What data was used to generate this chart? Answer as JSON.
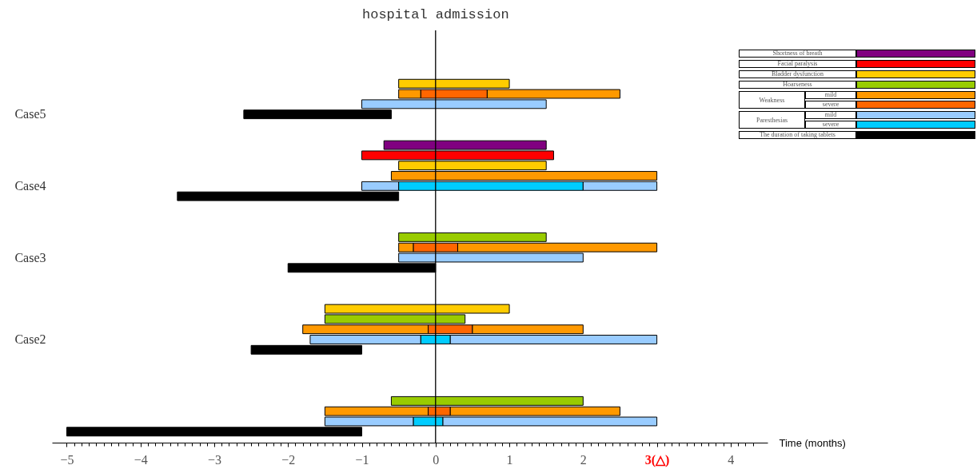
{
  "chart_data": {
    "type": "bar",
    "orientation": "horizontal",
    "xlabel": "Time (months)",
    "legend": "top right",
    "grid": false,
    "categories": [
      null,
      null,
      null,
      "Case5",
      null,
      null,
      null,
      null,
      null,
      null,
      "Case4",
      null,
      null,
      null,
      null,
      null,
      null,
      "Case3",
      null,
      null,
      null,
      null,
      null,
      null,
      null,
      "Case2",
      null,
      null,
      null,
      null,
      null,
      null,
      null,
      null,
      null
    ],
    "series": [
      {
        "name": "Shortness of breath",
        "color": "#800080",
        "values": [
          null,
          null,
          null,
          null,
          null,
          null,
          2.2,
          null,
          null,
          null,
          null,
          null,
          null,
          null,
          null,
          null,
          null,
          null,
          null,
          null,
          null,
          null,
          null,
          null,
          null,
          null,
          null,
          null,
          null,
          null,
          null,
          null,
          null,
          null,
          null
        ],
        "base": [
          null,
          null,
          null,
          null,
          null,
          null,
          -0.7,
          null,
          null,
          null,
          null,
          null,
          null,
          null,
          null,
          null,
          null,
          null,
          null,
          null,
          null,
          null,
          null,
          null,
          null,
          null,
          null,
          null,
          null,
          null,
          null,
          null,
          null,
          null,
          null
        ]
      },
      {
        "name": "Facial paralysis",
        "color": "#ff0000",
        "values": [
          null,
          null,
          null,
          null,
          null,
          null,
          null,
          2.6,
          null,
          null,
          null,
          null,
          null,
          null,
          null,
          null,
          null,
          null,
          null,
          null,
          null,
          null,
          null,
          null,
          null,
          null,
          null,
          null,
          null,
          null,
          null,
          null,
          null,
          null,
          null
        ],
        "base": [
          null,
          null,
          null,
          null,
          null,
          null,
          null,
          -1,
          null,
          null,
          null,
          null,
          null,
          null,
          null,
          null,
          null,
          null,
          null,
          null,
          null,
          null,
          null,
          null,
          null,
          null,
          null,
          null,
          null,
          null,
          null,
          null,
          null,
          null,
          null
        ]
      },
      {
        "name": "Bladder dysfunction",
        "color": "#ffcc00",
        "values": [
          1.5,
          null,
          null,
          null,
          null,
          null,
          null,
          null,
          2,
          null,
          null,
          null,
          null,
          null,
          null,
          null,
          null,
          null,
          null,
          null,
          null,
          null,
          2.5,
          null,
          null,
          null,
          null,
          null,
          null,
          null,
          null,
          null,
          null,
          null,
          null
        ],
        "base": [
          -0.5,
          null,
          null,
          null,
          null,
          null,
          null,
          null,
          -0.5,
          null,
          null,
          null,
          null,
          null,
          null,
          null,
          null,
          null,
          null,
          null,
          null,
          null,
          -1.5,
          null,
          null,
          null,
          null,
          null,
          null,
          null,
          null,
          null,
          null,
          null,
          null
        ]
      },
      {
        "name": "Hoarseness",
        "color": "#99cc00",
        "values": [
          null,
          null,
          null,
          null,
          null,
          null,
          null,
          null,
          null,
          null,
          null,
          null,
          null,
          null,
          null,
          2,
          null,
          null,
          null,
          null,
          null,
          null,
          null,
          1.9,
          null,
          null,
          null,
          null,
          null,
          null,
          null,
          2.6,
          null,
          null,
          null
        ],
        "base": [
          null,
          null,
          null,
          null,
          null,
          null,
          null,
          null,
          null,
          null,
          null,
          null,
          null,
          null,
          null,
          -0.5,
          null,
          null,
          null,
          null,
          null,
          null,
          null,
          -1.5,
          null,
          null,
          null,
          null,
          null,
          null,
          null,
          -0.6,
          null,
          null,
          null
        ]
      },
      {
        "name": "mild",
        "color": "#ff9900",
        "values": [
          null,
          0.3,
          null,
          null,
          null,
          null,
          null,
          null,
          null,
          3.6,
          null,
          null,
          null,
          null,
          null,
          null,
          0.2,
          null,
          null,
          null,
          null,
          null,
          null,
          null,
          1.7,
          null,
          null,
          null,
          null,
          null,
          null,
          null,
          1.4,
          null,
          null
        ],
        "base": [
          null,
          -0.5,
          null,
          null,
          null,
          null,
          null,
          null,
          null,
          -0.6,
          null,
          null,
          null,
          null,
          null,
          null,
          -0.5,
          null,
          null,
          null,
          null,
          null,
          null,
          null,
          -1.8,
          null,
          null,
          null,
          null,
          null,
          null,
          null,
          -1.5,
          null,
          null
        ]
      },
      {
        "name": "severe",
        "color": "#ff6600",
        "values": [
          null,
          0.9,
          null,
          null,
          null,
          null,
          null,
          null,
          null,
          null,
          null,
          null,
          null,
          null,
          null,
          null,
          0.6,
          null,
          null,
          null,
          null,
          null,
          null,
          null,
          0.6,
          null,
          null,
          null,
          null,
          null,
          null,
          null,
          0.3,
          null,
          null
        ],
        "base": [
          null,
          -0.2,
          null,
          null,
          null,
          null,
          null,
          null,
          null,
          null,
          null,
          null,
          null,
          null,
          null,
          null,
          -0.3,
          null,
          null,
          null,
          null,
          null,
          null,
          null,
          -0.1,
          null,
          null,
          null,
          null,
          null,
          null,
          null,
          -0.1,
          null,
          null
        ]
      },
      {
        "color": "#ff9900",
        "values": [
          null,
          1.8,
          null,
          null,
          null,
          null,
          null,
          null,
          null,
          null,
          null,
          null,
          null,
          null,
          null,
          null,
          2.7,
          null,
          null,
          null,
          null,
          null,
          null,
          null,
          1.5,
          null,
          null,
          null,
          null,
          null,
          null,
          null,
          2.3,
          null,
          null
        ],
        "base": [
          null,
          0.7,
          null,
          null,
          null,
          null,
          null,
          null,
          null,
          null,
          null,
          null,
          null,
          null,
          null,
          null,
          0.3,
          null,
          null,
          null,
          null,
          null,
          null,
          null,
          0.5,
          null,
          null,
          null,
          null,
          null,
          null,
          null,
          0.2,
          null,
          null
        ]
      },
      {
        "name": "mild",
        "color": "#99ccff",
        "values": [
          null,
          null,
          2.5,
          null,
          null,
          null,
          null,
          null,
          null,
          null,
          0.5,
          null,
          null,
          null,
          null,
          null,
          null,
          2.5,
          null,
          null,
          null,
          null,
          null,
          null,
          null,
          1.5,
          null,
          null,
          null,
          null,
          null,
          null,
          null,
          1.2,
          null
        ],
        "base": [
          null,
          null,
          -1,
          null,
          null,
          null,
          null,
          null,
          null,
          null,
          -1,
          null,
          null,
          null,
          null,
          null,
          null,
          -0.5,
          null,
          null,
          null,
          null,
          null,
          null,
          null,
          -1.7,
          null,
          null,
          null,
          null,
          null,
          null,
          null,
          -1.5,
          null
        ]
      },
      {
        "name": "severe",
        "color": "#00ccff",
        "values": [
          null,
          null,
          null,
          null,
          null,
          null,
          null,
          null,
          null,
          null,
          2.5,
          null,
          null,
          null,
          null,
          null,
          null,
          null,
          null,
          null,
          null,
          null,
          null,
          null,
          null,
          0.4,
          null,
          null,
          null,
          null,
          null,
          null,
          null,
          0.4,
          null
        ],
        "base": [
          null,
          null,
          null,
          null,
          null,
          null,
          null,
          null,
          null,
          null,
          -0.5,
          null,
          null,
          null,
          null,
          null,
          null,
          null,
          null,
          null,
          null,
          null,
          null,
          null,
          null,
          -0.2,
          null,
          null,
          null,
          null,
          null,
          null,
          null,
          -0.3,
          null
        ]
      },
      {
        "color": "#99ccff",
        "values": [
          null,
          null,
          null,
          null,
          null,
          null,
          null,
          null,
          null,
          null,
          1,
          null,
          null,
          null,
          null,
          null,
          null,
          null,
          null,
          null,
          null,
          null,
          null,
          null,
          null,
          2.8,
          null,
          null,
          null,
          null,
          null,
          null,
          null,
          2.9,
          null
        ],
        "base": [
          null,
          null,
          null,
          null,
          null,
          null,
          null,
          null,
          null,
          null,
          2,
          null,
          null,
          null,
          null,
          null,
          null,
          null,
          null,
          null,
          null,
          null,
          null,
          null,
          null,
          0.2,
          null,
          null,
          null,
          null,
          null,
          null,
          null,
          0.1,
          null
        ]
      },
      {
        "name": "The duration of taking tablets",
        "color": "#000000",
        "values": [
          null,
          null,
          null,
          2,
          null,
          null,
          null,
          null,
          null,
          null,
          null,
          3,
          null,
          null,
          null,
          null,
          null,
          null,
          2,
          null,
          null,
          null,
          null,
          null,
          null,
          null,
          1.5,
          null,
          null,
          null,
          null,
          null,
          null,
          null,
          4
        ],
        "base": [
          null,
          null,
          null,
          -2.6,
          null,
          null,
          null,
          null,
          null,
          null,
          null,
          -3.5,
          null,
          null,
          null,
          null,
          null,
          null,
          -2,
          null,
          null,
          null,
          null,
          null,
          null,
          null,
          -2.5,
          null,
          null,
          null,
          null,
          null,
          null,
          null,
          -5
        ]
      }
    ],
    "xlim": [
      -5.2,
      4.5
    ],
    "xticks": [
      -5,
      -4,
      -3,
      -2,
      -1,
      0,
      1,
      2,
      {
        "value": 3,
        "label": "3(△)"
      },
      4,
      {
        "value": -4.9,
        "label": null
      },
      {
        "value": -4.8,
        "label": null
      },
      {
        "value": -4.7,
        "label": null
      },
      {
        "value": -4.6,
        "label": null
      },
      {
        "value": -4.5,
        "label": null
      },
      {
        "value": -4.4,
        "label": null
      },
      {
        "value": -4.3,
        "label": null
      },
      {
        "value": -4.2,
        "label": null
      },
      {
        "value": -4.1,
        "label": null
      },
      {
        "value": -3.9,
        "label": null
      },
      {
        "value": -3.8,
        "label": null
      },
      {
        "value": -3.7,
        "label": null
      },
      {
        "value": -3.6,
        "label": null
      },
      {
        "value": -3.5,
        "label": null
      },
      {
        "value": -3.4,
        "label": null
      },
      {
        "value": -3.3,
        "label": null
      },
      {
        "value": -3.2,
        "label": null
      },
      {
        "value": -3.1,
        "label": null
      },
      {
        "value": -2.9,
        "label": null
      },
      {
        "value": -2.8,
        "label": null
      },
      {
        "value": -2.7,
        "label": null
      },
      {
        "value": -2.6,
        "label": null
      },
      {
        "value": -2.5,
        "label": null
      },
      {
        "value": -2.4,
        "label": null
      },
      {
        "value": -2.3,
        "label": null
      },
      {
        "value": -2.2,
        "label": null
      },
      {
        "value": -2.1,
        "label": null
      },
      {
        "value": -1.9,
        "label": null
      },
      {
        "value": -1.8,
        "label": null
      },
      {
        "value": -1.7,
        "label": null
      },
      {
        "value": -1.6,
        "label": null
      },
      {
        "value": -1.5,
        "label": null
      },
      {
        "value": -1.4,
        "label": null
      },
      {
        "value": -1.3,
        "label": null
      },
      {
        "value": -1.2,
        "label": null
      },
      {
        "value": -1.1,
        "label": null
      },
      {
        "value": -0.9,
        "label": null
      },
      {
        "value": -0.8,
        "label": null
      },
      {
        "value": -0.7,
        "label": null
      },
      {
        "value": -0.6,
        "label": null
      },
      {
        "value": -0.5,
        "label": null
      },
      {
        "value": -0.4,
        "label": null
      },
      {
        "value": -0.3,
        "label": null
      },
      {
        "value": -0.2,
        "label": null
      },
      {
        "value": -0.1,
        "label": null
      },
      {
        "value": 0.1,
        "label": null
      },
      {
        "value": 0.2,
        "label": null
      },
      {
        "value": 0.3,
        "label": null
      },
      {
        "value": 0.4,
        "label": null
      },
      {
        "value": 0.5,
        "label": null
      },
      {
        "value": 0.6,
        "label": null
      },
      {
        "value": 0.7,
        "label": null
      },
      {
        "value": 0.8,
        "label": null
      },
      {
        "value": 0.9,
        "label": null
      },
      {
        "value": 1.1,
        "label": null
      },
      {
        "value": 1.2,
        "label": null
      },
      {
        "value": 1.3,
        "label": null
      },
      {
        "value": 1.4,
        "label": null
      },
      {
        "value": 1.5,
        "label": null
      },
      {
        "value": 1.6,
        "label": null
      },
      {
        "value": 1.7,
        "label": null
      },
      {
        "value": 1.8,
        "label": null
      },
      {
        "value": 1.9,
        "label": null
      },
      {
        "value": 2.1,
        "label": null
      },
      {
        "value": 2.2,
        "label": null
      },
      {
        "value": 2.3,
        "label": null
      },
      {
        "value": 2.4,
        "label": null
      },
      {
        "value": 2.5,
        "label": null
      },
      {
        "value": 2.6,
        "label": null
      },
      {
        "value": 2.7,
        "label": null
      },
      {
        "value": 2.8,
        "label": null
      },
      {
        "value": 2.9,
        "label": null
      },
      {
        "value": 3.1,
        "label": null
      },
      {
        "value": 3.2,
        "label": null
      },
      {
        "value": 3.3,
        "label": null
      },
      {
        "value": 3.4,
        "label": null
      },
      {
        "value": 3.5,
        "label": null
      },
      {
        "value": 3.6,
        "label": null
      },
      {
        "value": 3.7,
        "label": null
      },
      {
        "value": 3.8,
        "label": null
      },
      {
        "value": 3.9,
        "label": null
      },
      {
        "value": 4.1,
        "label": null
      },
      {
        "value": 4.2,
        "label": null
      },
      {
        "value": 4.3,
        "label": null
      }
    ],
    "ref_lines": [
      {
        "axis": "x",
        "value": 0,
        "label": "hospital admission"
      }
    ],
    "annotations": [
      "Weakness",
      "Paresthesias"
    ]
  }
}
